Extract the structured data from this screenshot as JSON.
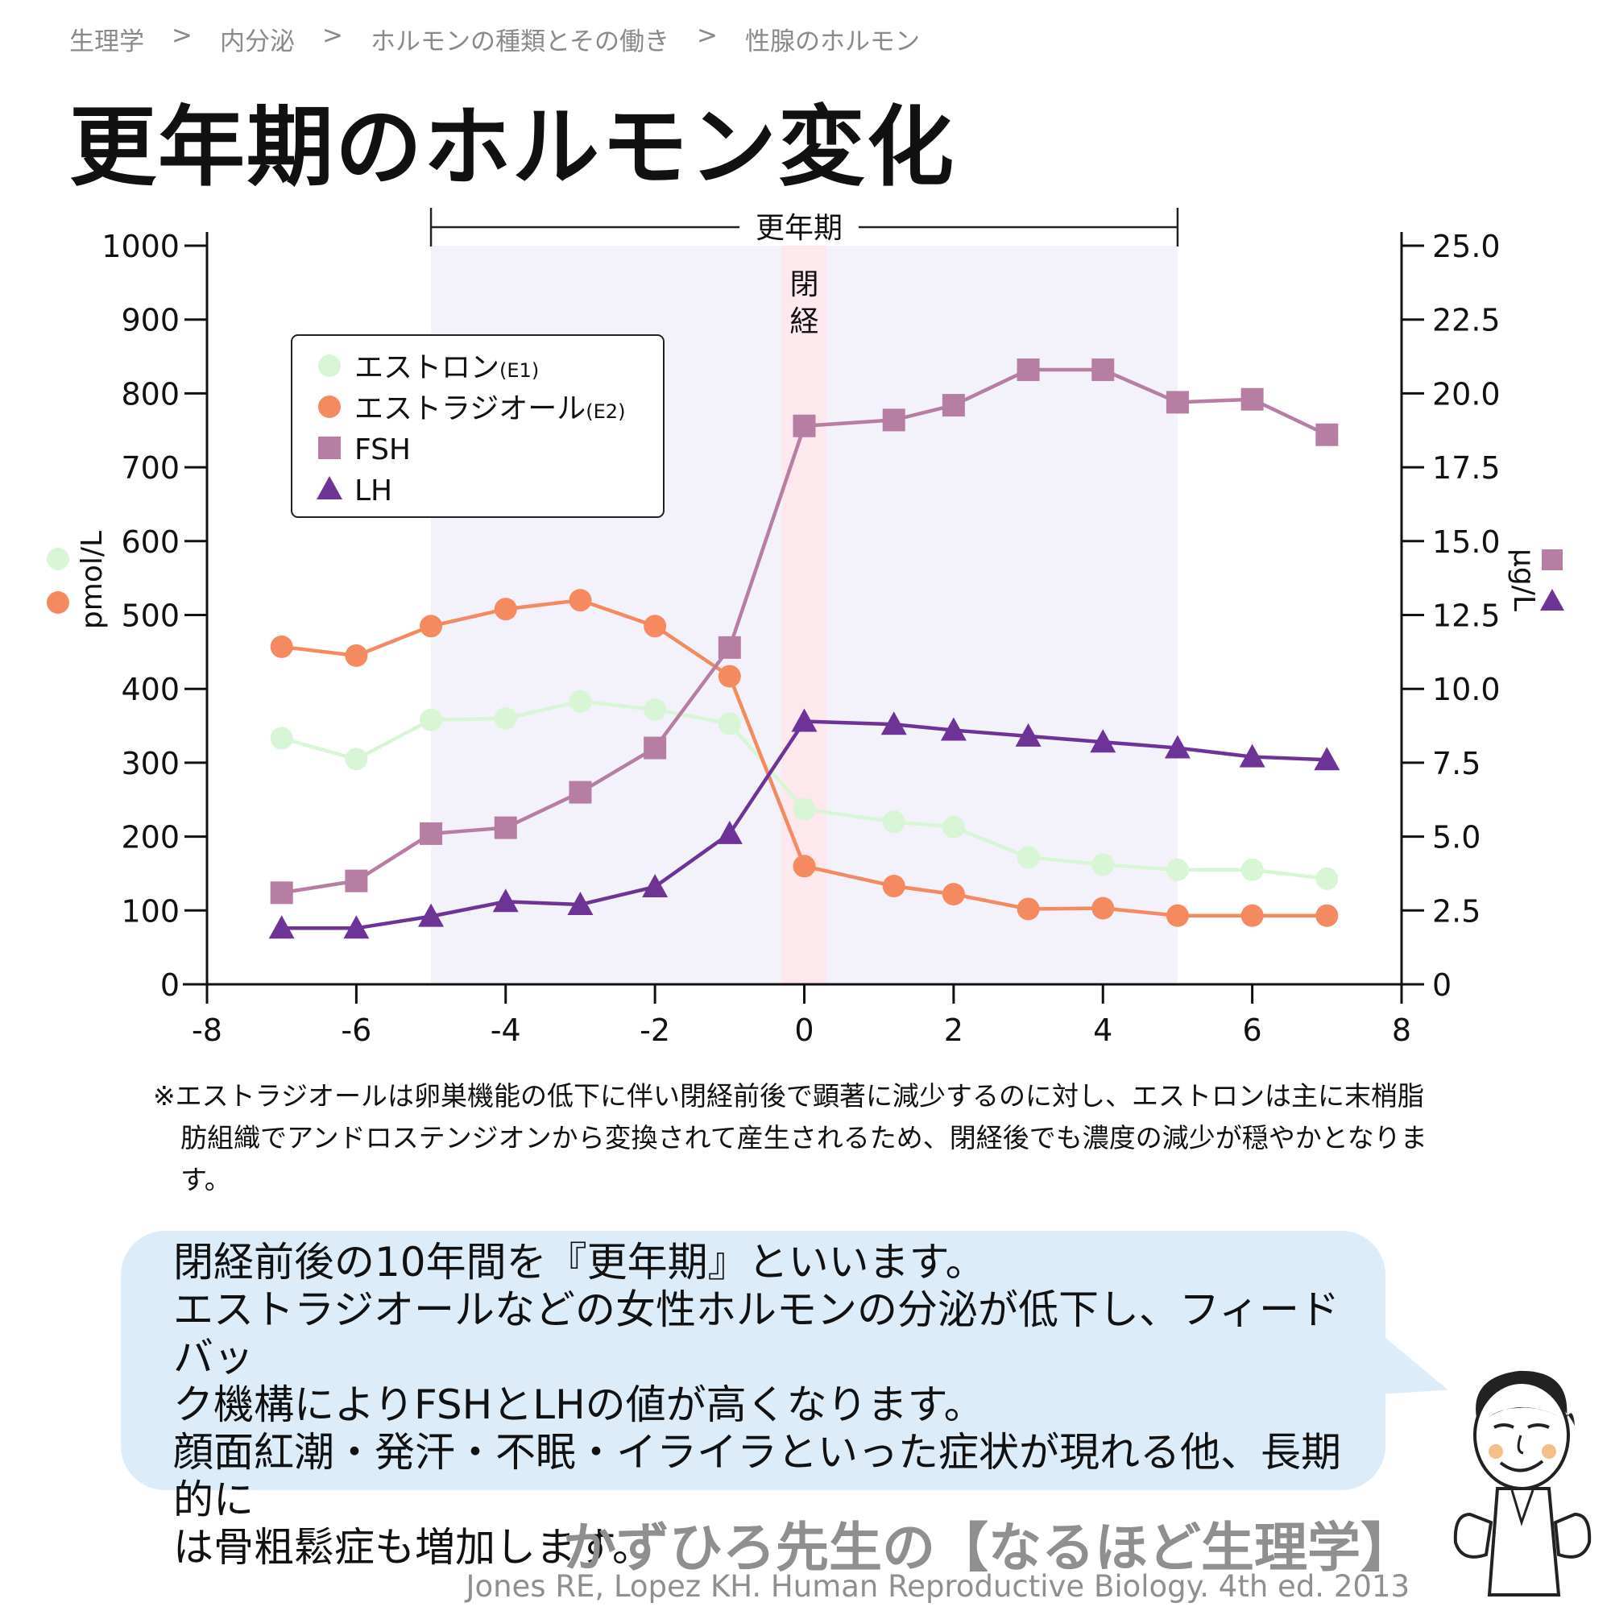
{
  "breadcrumb": [
    "生理学",
    "内分泌",
    "ホルモンの種類とその働き",
    "性腺のホルモン"
  ],
  "breadcrumb_separator": ">",
  "title": "更年期のホルモン変化",
  "chart_data": {
    "type": "line",
    "x_axis": {
      "min": -8,
      "max": 8,
      "ticks": [
        "-8",
        "-6",
        "-4",
        "-2",
        "0",
        "2",
        "4",
        "6",
        "8"
      ]
    },
    "y_left": {
      "label": "pmol/L",
      "min": 0,
      "max": 1000,
      "ticks": [
        "0",
        "100",
        "200",
        "300",
        "400",
        "500",
        "600",
        "700",
        "800",
        "900",
        "1000"
      ]
    },
    "y_right": {
      "label": "μg/L",
      "min": 0,
      "max": 25,
      "ticks": [
        "0",
        "2.5",
        "5.0",
        "7.5",
        "10.0",
        "12.5",
        "15.0",
        "17.5",
        "20.0",
        "22.5",
        "25.0"
      ]
    },
    "menopause_period": {
      "label": "更年期",
      "start": -5,
      "end": 5
    },
    "menopause": {
      "label": "閉経",
      "start": -0.3,
      "end": 0.3
    },
    "series": [
      {
        "name": "エストロン",
        "suffix": "(E1)",
        "axis": "left",
        "marker": "circle",
        "color": "#d8f5d5",
        "x": [
          -7,
          -6,
          -5,
          -4,
          -3,
          -2,
          -1,
          0,
          1.2,
          2,
          3,
          4,
          5,
          6,
          7
        ],
        "y": [
          333,
          305,
          358,
          360,
          383,
          372,
          353,
          237,
          220,
          213,
          172,
          162,
          155,
          155,
          143
        ]
      },
      {
        "name": "エストラジオール",
        "suffix": "(E2)",
        "axis": "left",
        "marker": "circle",
        "color": "#f5895f",
        "x": [
          -7,
          -6,
          -5,
          -4,
          -3,
          -2,
          -1,
          0,
          1.2,
          2,
          3,
          4,
          5,
          6,
          7
        ],
        "y": [
          457,
          445,
          485,
          508,
          520,
          485,
          417,
          160,
          133,
          122,
          102,
          103,
          93,
          93,
          93
        ]
      },
      {
        "name": "FSH",
        "suffix": "",
        "axis": "right",
        "marker": "square",
        "color": "#b67ea3",
        "x": [
          -7,
          -6,
          -5,
          -4,
          -3,
          -2,
          -1,
          0,
          1.2,
          2,
          3,
          4,
          5,
          6,
          7
        ],
        "y": [
          3.1,
          3.5,
          5.1,
          5.3,
          6.5,
          8.0,
          11.4,
          18.9,
          19.1,
          19.6,
          20.8,
          20.8,
          19.7,
          19.8,
          18.6
        ]
      },
      {
        "name": "LH",
        "suffix": "",
        "axis": "right",
        "marker": "triangle",
        "color": "#6d3396",
        "x": [
          -7,
          -6,
          -5,
          -4,
          -3,
          -2,
          -1,
          0,
          1.2,
          2,
          3,
          4,
          5,
          6,
          7
        ],
        "y": [
          1.9,
          1.9,
          2.3,
          2.8,
          2.7,
          3.3,
          5.1,
          8.9,
          8.8,
          8.6,
          8.4,
          8.2,
          8.0,
          7.7,
          7.6
        ]
      }
    ]
  },
  "note": "※エストラジオールは卵巣機能の低下に伴い閉経前後で顕著に減少するのに対し、エストロンは主に末梢脂肪組織でアンドロステンジオンから変換されて産生されるため、閉経後でも濃度の減少が穏やかとなります。",
  "bubble_lines": [
    "閉経前後の10年間を『更年期』といいます。",
    "エストラジオールなどの女性ホルモンの分泌が低下し、フィードバッ",
    "ク機構によりFSHとLHの値が高くなります。",
    "顔面紅潮・発汗・不眠・イライラといった症状が現れる他、長期的に",
    "は骨粗鬆症も増加します。"
  ],
  "brand": "かずひろ先生の【なるほど生理学】",
  "citation": "Jones RE, Lopez KH. Human Reproductive Biology. 4th ed. 2013"
}
